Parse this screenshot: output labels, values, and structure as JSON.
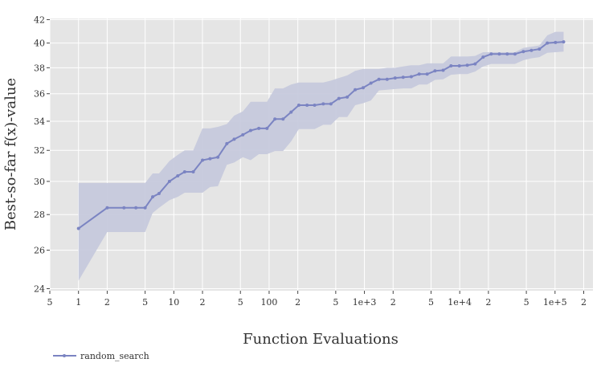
{
  "chart_data": {
    "type": "line",
    "xlabel": "Function Evaluations",
    "ylabel": "Best-so-far f(x)-value",
    "x_scale": "log",
    "y_scale": "log",
    "xlim": [
      0.5,
      250000
    ],
    "ylim": [
      23.9,
      42.1
    ],
    "grid": true,
    "legend_position": "bottom-left",
    "x_ticks": [
      {
        "value": 0.5,
        "label": "5"
      },
      {
        "value": 1,
        "label": "1"
      },
      {
        "value": 2,
        "label": "2"
      },
      {
        "value": 5,
        "label": "5"
      },
      {
        "value": 10,
        "label": "10"
      },
      {
        "value": 20,
        "label": "2"
      },
      {
        "value": 50,
        "label": "5"
      },
      {
        "value": 100,
        "label": "100"
      },
      {
        "value": 200,
        "label": "2"
      },
      {
        "value": 500,
        "label": "5"
      },
      {
        "value": 1000,
        "label": "1e+3"
      },
      {
        "value": 2000,
        "label": "2"
      },
      {
        "value": 5000,
        "label": "5"
      },
      {
        "value": 10000,
        "label": "1e+4"
      },
      {
        "value": 20000,
        "label": "2"
      },
      {
        "value": 50000,
        "label": "5"
      },
      {
        "value": 100000,
        "label": "1e+5"
      },
      {
        "value": 200000,
        "label": "2"
      }
    ],
    "y_ticks": [
      {
        "value": 24,
        "label": "24"
      },
      {
        "value": 26,
        "label": "26"
      },
      {
        "value": 28,
        "label": "28"
      },
      {
        "value": 30,
        "label": "30"
      },
      {
        "value": 32,
        "label": "32"
      },
      {
        "value": 34,
        "label": "34"
      },
      {
        "value": 36,
        "label": "36"
      },
      {
        "value": 38,
        "label": "38"
      },
      {
        "value": 40,
        "label": "40"
      },
      {
        "value": 42,
        "label": "42"
      }
    ],
    "series": [
      {
        "name": "random_search",
        "color": "#7b84c2",
        "band_color": "#c4c8dc",
        "x": [
          1,
          2,
          3,
          4,
          5,
          6,
          7,
          9,
          11,
          13,
          16,
          20,
          24,
          29,
          36,
          43,
          53,
          64,
          78,
          95,
          115,
          140,
          170,
          205,
          250,
          300,
          370,
          445,
          540,
          660,
          800,
          970,
          1170,
          1420,
          1730,
          2100,
          2550,
          3100,
          3750,
          4550,
          5500,
          6700,
          8100,
          9900,
          12000,
          14500,
          17600,
          21400,
          26000,
          31500,
          38000,
          46500,
          56500,
          68500,
          83000,
          101000,
          123000
        ],
        "y": [
          27.2,
          28.4,
          28.4,
          28.4,
          28.4,
          29.05,
          29.25,
          30.0,
          30.35,
          30.6,
          30.6,
          31.35,
          31.45,
          31.55,
          32.45,
          32.75,
          33.05,
          33.35,
          33.5,
          33.5,
          34.15,
          34.15,
          34.65,
          35.15,
          35.15,
          35.15,
          35.25,
          35.25,
          35.65,
          35.75,
          36.3,
          36.45,
          36.8,
          37.1,
          37.1,
          37.2,
          37.25,
          37.3,
          37.5,
          37.5,
          37.75,
          37.8,
          38.15,
          38.15,
          38.2,
          38.3,
          38.85,
          39.1,
          39.1,
          39.1,
          39.1,
          39.3,
          39.4,
          39.5,
          40.0,
          40.05,
          40.1
        ],
        "y_upper": [
          29.9,
          29.9,
          29.9,
          29.9,
          29.9,
          30.5,
          30.5,
          31.3,
          31.7,
          32.0,
          32.0,
          33.5,
          33.5,
          33.6,
          33.8,
          34.4,
          34.7,
          35.4,
          35.4,
          35.4,
          36.4,
          36.4,
          36.7,
          36.85,
          36.85,
          36.85,
          36.85,
          37.0,
          37.2,
          37.4,
          37.75,
          37.9,
          37.9,
          37.9,
          38.0,
          38.0,
          38.1,
          38.2,
          38.2,
          38.35,
          38.35,
          38.35,
          38.9,
          38.9,
          38.9,
          38.95,
          39.25,
          39.25,
          39.25,
          39.25,
          39.25,
          39.6,
          39.7,
          39.8,
          40.65,
          40.95,
          40.95
        ],
        "y_lower": [
          24.4,
          27.0,
          27.0,
          27.0,
          27.0,
          28.1,
          28.4,
          28.85,
          29.05,
          29.3,
          29.3,
          29.3,
          29.65,
          29.7,
          31.05,
          31.2,
          31.55,
          31.35,
          31.75,
          31.75,
          31.95,
          31.95,
          32.6,
          33.45,
          33.45,
          33.45,
          33.75,
          33.75,
          34.3,
          34.3,
          35.15,
          35.3,
          35.5,
          36.25,
          36.3,
          36.35,
          36.4,
          36.4,
          36.7,
          36.7,
          37.05,
          37.1,
          37.45,
          37.5,
          37.5,
          37.7,
          38.1,
          38.3,
          38.3,
          38.3,
          38.3,
          38.6,
          38.75,
          38.85,
          39.2,
          39.25,
          39.3
        ]
      }
    ]
  }
}
